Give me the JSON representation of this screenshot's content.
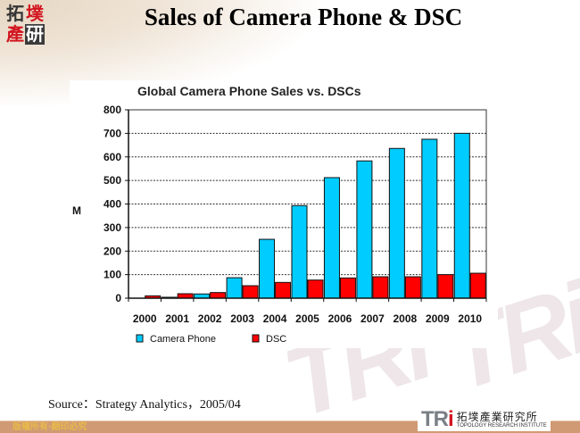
{
  "slide": {
    "title": "Sales of Camera Phone & DSC",
    "logo_chars": [
      "拓",
      "墣",
      "產",
      "研"
    ],
    "source": "Source：Strategy Analytics，2005/04",
    "footer_text": "版權所有‧翻印必究",
    "institute": {
      "mark_prefix": "TR",
      "mark_suffix": "i",
      "name_cn": "拓墣產業研究所",
      "name_en": "TOPOLOGY RESEARCH INSTITUTE"
    },
    "watermark": "TRi"
  },
  "colors": {
    "camera_phone": "#00ccff",
    "dsc": "#ff0000",
    "footer": "#cf9a74",
    "accent_red": "#d2141e"
  },
  "chart_data": {
    "type": "bar",
    "title": "Global Camera Phone Sales vs. DSCs",
    "xlabel": "",
    "ylabel": "M",
    "ylim": [
      0,
      800
    ],
    "yticks": [
      0,
      100,
      200,
      300,
      400,
      500,
      600,
      700,
      800
    ],
    "grid": "horizontal dotted",
    "legend_position": "bottom-left",
    "categories": [
      "2000",
      "2001",
      "2002",
      "2003",
      "2004",
      "2005",
      "2006",
      "2007",
      "2008",
      "2009",
      "2010"
    ],
    "series": [
      {
        "name": "Camera Phone",
        "color": "#00ccff",
        "values": [
          0,
          4,
          18,
          87,
          250,
          393,
          512,
          583,
          636,
          675,
          700
        ]
      },
      {
        "name": "DSC",
        "color": "#ff0000",
        "values": [
          10,
          19,
          24,
          53,
          67,
          77,
          86,
          91,
          91,
          100,
          106
        ]
      }
    ]
  }
}
